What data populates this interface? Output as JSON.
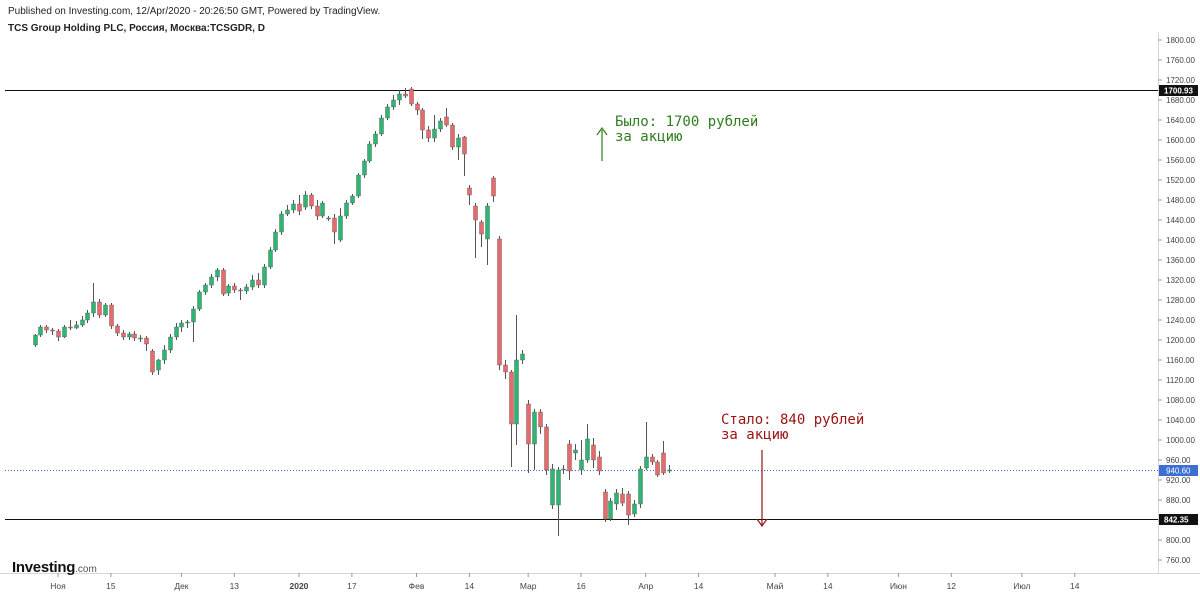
{
  "header": {
    "published": "Published on Investing.com, 12/Apr/2020 - 20:26:50 GMT, Powered by TradingView.",
    "symbol": "TCS Group Holding PLC, Россия, Москва:TCSGDR, D"
  },
  "logo": {
    "brand": "Investing",
    "suffix": ".com"
  },
  "annotations": {
    "before": {
      "line1": "Было: 1700 рублей",
      "line2": "за акцию",
      "color": "#2e7d1e"
    },
    "after": {
      "line1": "Стало: 840 рублей",
      "line2": "за акцию",
      "color": "#9b1212"
    }
  },
  "colors": {
    "up": "#2bb673",
    "down": "#e86a6a",
    "wick": "#555555",
    "last": "#3b6fd4"
  },
  "chart_data": {
    "type": "candlestick",
    "title": "TCS Group Holding PLC, Россия, Москва:TCSGDR, D",
    "timeframe": "D",
    "ylim": [
      760,
      1800
    ],
    "y_ticks": [
      760,
      800,
      840,
      880,
      920,
      960,
      1000,
      1040,
      1080,
      1120,
      1160,
      1200,
      1240,
      1280,
      1320,
      1360,
      1400,
      1440,
      1480,
      1520,
      1560,
      1600,
      1640,
      1680,
      1720,
      1760,
      1800
    ],
    "y_tick_labels": [
      "760.00",
      "800.00",
      "840.00",
      "880.00",
      "920.00",
      "960.00",
      "1000.00",
      "1040.00",
      "1080.00",
      "1120.00",
      "1160.00",
      "1200.00",
      "1240.00",
      "1280.00",
      "1320.00",
      "1360.00",
      "1400.00",
      "1440.00",
      "1480.00",
      "1520.00",
      "1560.00",
      "1600.00",
      "1640.00",
      "1680.00",
      "1720.00",
      "1760.00",
      "1800.00"
    ],
    "x_ticks": [
      {
        "label": "Ноя",
        "bar": 4
      },
      {
        "label": "15",
        "bar": 13
      },
      {
        "label": "Дек",
        "bar": 25
      },
      {
        "label": "13",
        "bar": 34
      },
      {
        "label": "2020",
        "bar": 45
      },
      {
        "label": "17",
        "bar": 54
      },
      {
        "label": "Фев",
        "bar": 65
      },
      {
        "label": "14",
        "bar": 74
      },
      {
        "label": "Мар",
        "bar": 84
      },
      {
        "label": "16",
        "bar": 93
      },
      {
        "label": "Апр",
        "bar": 104
      },
      {
        "label": "14",
        "bar": 113
      },
      {
        "label": "Май",
        "bar": 126
      },
      {
        "label": "14",
        "bar": 135
      },
      {
        "label": "Июн",
        "bar": 147
      },
      {
        "label": "12",
        "bar": 156
      },
      {
        "label": "Июл",
        "bar": 168
      },
      {
        "label": "14",
        "bar": 177
      }
    ],
    "x_bars_total": 188,
    "hlines": [
      {
        "value": 1700.93,
        "label": "1700.93"
      },
      {
        "value": 842.35,
        "label": "842.35"
      }
    ],
    "last_price": {
      "value": 940.6,
      "label": "940.60"
    },
    "candles": [
      [
        1190,
        1210,
        1186,
        1212
      ],
      [
        1210,
        1226,
        1206,
        1230
      ],
      [
        1226,
        1220,
        1214,
        1230
      ],
      [
        1220,
        1218,
        1210,
        1224
      ],
      [
        1218,
        1206,
        1198,
        1222
      ],
      [
        1206,
        1226,
        1204,
        1230
      ],
      [
        1226,
        1224,
        1220,
        1240
      ],
      [
        1224,
        1230,
        1222,
        1238
      ],
      [
        1230,
        1240,
        1226,
        1248
      ],
      [
        1240,
        1254,
        1234,
        1260
      ],
      [
        1254,
        1276,
        1246,
        1314
      ],
      [
        1276,
        1250,
        1244,
        1282
      ],
      [
        1250,
        1270,
        1246,
        1274
      ],
      [
        1270,
        1228,
        1222,
        1274
      ],
      [
        1228,
        1214,
        1208,
        1232
      ],
      [
        1214,
        1206,
        1200,
        1220
      ],
      [
        1206,
        1212,
        1200,
        1216
      ],
      [
        1212,
        1204,
        1198,
        1218
      ],
      [
        1204,
        1204,
        1196,
        1210
      ],
      [
        1204,
        1192,
        1178,
        1208
      ],
      [
        1178,
        1136,
        1130,
        1182
      ],
      [
        1140,
        1160,
        1130,
        1162
      ],
      [
        1160,
        1180,
        1152,
        1190
      ],
      [
        1180,
        1206,
        1174,
        1212
      ],
      [
        1206,
        1226,
        1200,
        1234
      ],
      [
        1226,
        1234,
        1216,
        1240
      ],
      [
        1234,
        1236,
        1224,
        1240
      ],
      [
        1236,
        1262,
        1196,
        1268
      ],
      [
        1262,
        1296,
        1258,
        1300
      ],
      [
        1296,
        1310,
        1290,
        1314
      ],
      [
        1310,
        1326,
        1304,
        1332
      ],
      [
        1326,
        1340,
        1318,
        1344
      ],
      [
        1340,
        1292,
        1288,
        1344
      ],
      [
        1294,
        1308,
        1288,
        1312
      ],
      [
        1308,
        1300,
        1294,
        1314
      ],
      [
        1300,
        1298,
        1280,
        1304
      ],
      [
        1298,
        1306,
        1292,
        1312
      ],
      [
        1306,
        1320,
        1300,
        1330
      ],
      [
        1320,
        1310,
        1304,
        1334
      ],
      [
        1310,
        1346,
        1304,
        1352
      ],
      [
        1346,
        1380,
        1342,
        1386
      ],
      [
        1380,
        1416,
        1376,
        1422
      ],
      [
        1416,
        1452,
        1410,
        1458
      ],
      [
        1452,
        1460,
        1448,
        1470
      ],
      [
        1460,
        1472,
        1454,
        1480
      ],
      [
        1472,
        1458,
        1450,
        1490
      ],
      [
        1466,
        1490,
        1460,
        1498
      ],
      [
        1490,
        1468,
        1462,
        1494
      ],
      [
        1468,
        1448,
        1440,
        1480
      ],
      [
        1448,
        1474,
        1444,
        1478
      ],
      [
        1444,
        1444,
        1438,
        1448
      ],
      [
        1444,
        1416,
        1392,
        1452
      ],
      [
        1400,
        1448,
        1396,
        1464
      ],
      [
        1448,
        1474,
        1442,
        1480
      ],
      [
        1474,
        1488,
        1470,
        1492
      ],
      [
        1488,
        1530,
        1484,
        1534
      ],
      [
        1530,
        1558,
        1524,
        1562
      ],
      [
        1558,
        1592,
        1554,
        1598
      ],
      [
        1592,
        1612,
        1586,
        1618
      ],
      [
        1612,
        1644,
        1608,
        1650
      ],
      [
        1644,
        1666,
        1640,
        1672
      ],
      [
        1666,
        1680,
        1660,
        1690
      ],
      [
        1680,
        1692,
        1670,
        1700
      ],
      [
        1692,
        1688,
        1684,
        1704
      ],
      [
        1702,
        1672,
        1668,
        1706
      ],
      [
        1672,
        1660,
        1650,
        1676
      ],
      [
        1660,
        1620,
        1602,
        1664
      ],
      [
        1620,
        1604,
        1596,
        1628
      ],
      [
        1604,
        1622,
        1596,
        1650
      ],
      [
        1622,
        1638,
        1616,
        1644
      ],
      [
        1646,
        1630,
        1626,
        1664
      ],
      [
        1630,
        1586,
        1580,
        1634
      ],
      [
        1586,
        1604,
        1560,
        1612
      ],
      [
        1606,
        1572,
        1528,
        1608
      ],
      [
        1504,
        1490,
        1470,
        1510
      ],
      [
        1468,
        1440,
        1364,
        1474
      ],
      [
        1436,
        1412,
        1386,
        1440
      ],
      [
        1402,
        1468,
        1350,
        1474
      ],
      [
        1524,
        1488,
        1476,
        1528
      ],
      [
        1402,
        1150,
        1140,
        1408
      ],
      [
        1150,
        1136,
        1122,
        1160
      ],
      [
        1136,
        1032,
        946,
        1140
      ],
      [
        1032,
        1160,
        990,
        1250
      ],
      [
        1160,
        1172,
        1152,
        1180
      ],
      [
        1072,
        992,
        934,
        1080
      ],
      [
        992,
        1056,
        940,
        1062
      ],
      [
        1056,
        1026,
        1012,
        1062
      ],
      [
        1026,
        940,
        930,
        1032
      ],
      [
        870,
        942,
        862,
        952
      ],
      [
        870,
        940,
        808,
        946
      ],
      [
        940,
        942,
        932,
        950
      ],
      [
        992,
        938,
        920,
        1000
      ],
      [
        974,
        980,
        960,
        992
      ],
      [
        940,
        960,
        930,
        1000
      ],
      [
        960,
        1002,
        954,
        1032
      ],
      [
        990,
        960,
        944,
        1004
      ],
      [
        966,
        938,
        930,
        978
      ],
      [
        896,
        842,
        836,
        902
      ],
      [
        842,
        878,
        838,
        884
      ],
      [
        872,
        894,
        860,
        902
      ],
      [
        892,
        874,
        868,
        904
      ],
      [
        892,
        850,
        830,
        898
      ],
      [
        852,
        872,
        846,
        880
      ],
      [
        872,
        942,
        864,
        948
      ],
      [
        944,
        966,
        940,
        1036
      ],
      [
        966,
        956,
        950,
        972
      ],
      [
        956,
        930,
        926,
        960
      ],
      [
        974,
        934,
        930,
        998
      ],
      [
        940,
        940,
        934,
        950
      ]
    ]
  }
}
